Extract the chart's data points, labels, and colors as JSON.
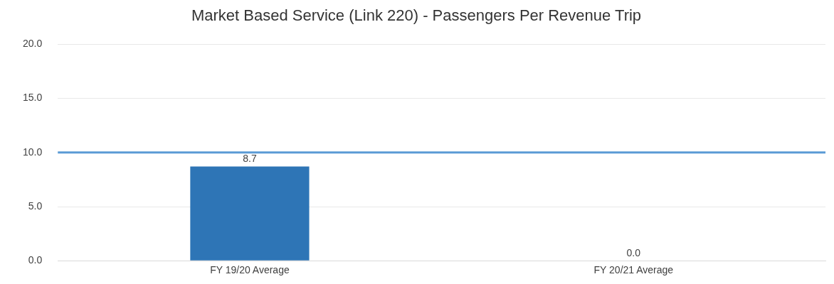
{
  "chart_data": {
    "type": "bar",
    "title": "Market Based Service (Link 220) - Passengers Per Revenue Trip",
    "categories": [
      "FY 19/20 Average",
      "FY 20/21 Average"
    ],
    "values": [
      8.7,
      0
    ],
    "color": "#2e75b6",
    "value_labels": [
      "8.7",
      "0.0"
    ],
    "ylim": [
      0,
      20
    ],
    "yticks": [
      {
        "value": 0,
        "label": "0.0"
      },
      {
        "value": 5,
        "label": "5.0"
      },
      {
        "value": 10,
        "label": "10.0"
      },
      {
        "value": 15,
        "label": "15.0"
      },
      {
        "value": 20,
        "label": "20.0"
      }
    ],
    "ref_lines": [
      {
        "axis": "y",
        "value": 10,
        "color": "#5b9bd5"
      }
    ],
    "grid": "y",
    "legend": false
  }
}
